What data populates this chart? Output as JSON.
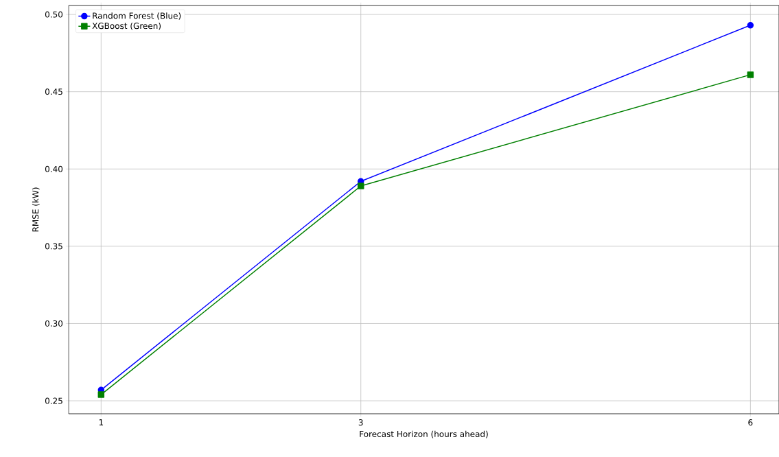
{
  "chart_data": {
    "type": "line",
    "xlabel": "Forecast Horizon (hours ahead)",
    "ylabel": "RMSE (kW)",
    "x": [
      1,
      3,
      6
    ],
    "series": [
      {
        "name": "Random Forest (Blue)",
        "color": "#0000ff",
        "marker": "circle",
        "values": [
          0.257,
          0.392,
          0.493
        ]
      },
      {
        "name": "XGBoost (Green)",
        "color": "#008000",
        "marker": "square",
        "values": [
          0.254,
          0.389,
          0.461
        ]
      }
    ],
    "xlim": [
      0.75,
      6.22
    ],
    "ylim": [
      0.2416,
      0.5058
    ],
    "xticks": [
      1,
      3,
      6
    ],
    "yticks": [
      {
        "value": 0.25,
        "label": "0.25"
      },
      {
        "value": 0.3,
        "label": "0.30"
      },
      {
        "value": 0.35,
        "label": "0.35"
      },
      {
        "value": 0.4,
        "label": "0.40"
      },
      {
        "value": 0.45,
        "label": "0.45"
      },
      {
        "value": 0.5,
        "label": "0.50"
      }
    ],
    "grid": true,
    "legend": "top left",
    "line_style": "solid"
  }
}
